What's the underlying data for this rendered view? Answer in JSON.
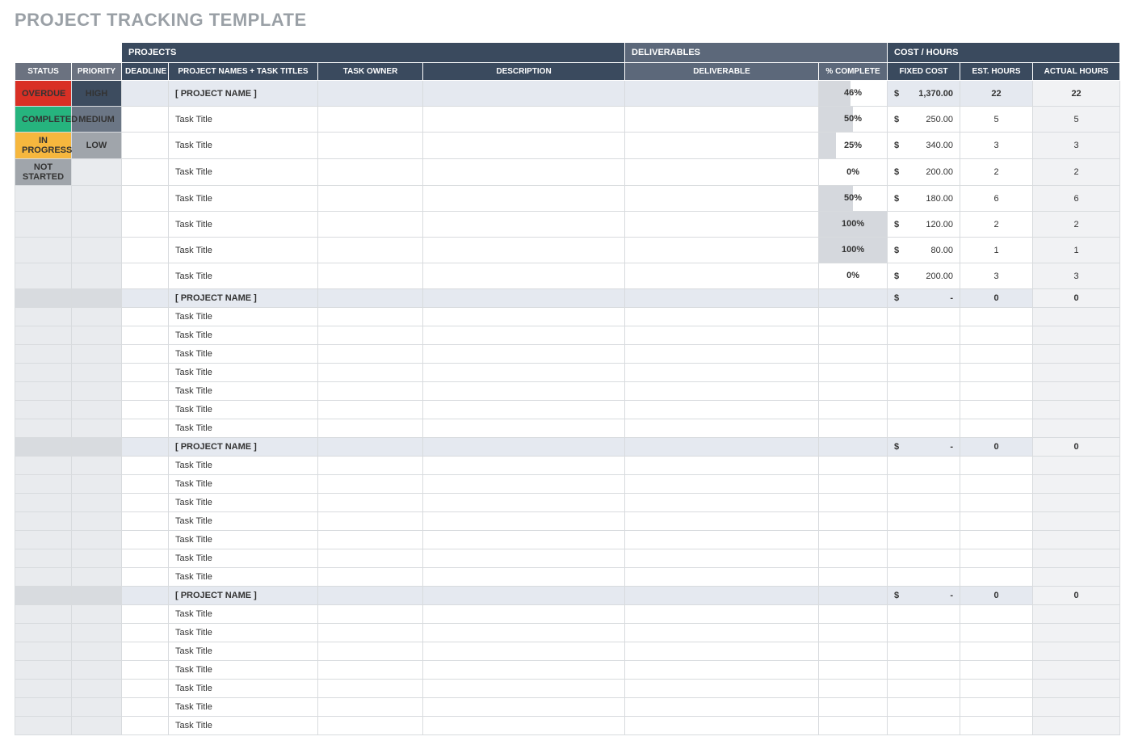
{
  "title": "PROJECT TRACKING TEMPLATE",
  "group_headers": {
    "projects": "PROJECTS",
    "deliverables": "DELIVERABLES",
    "cost_hours": "COST / HOURS"
  },
  "columns": {
    "status": "STATUS",
    "priority": "PRIORITY",
    "deadline": "DEADLINE",
    "name": "PROJECT NAMES + TASK TITLES",
    "owner": "TASK OWNER",
    "desc": "DESCRIPTION",
    "deliverable": "DELIVERABLE",
    "pct": "% COMPLETE",
    "cost": "FIXED COST",
    "est": "EST. HOURS",
    "act": "ACTUAL HOURS"
  },
  "status_badges": [
    {
      "label": "OVERDUE",
      "bg": "#d93025"
    },
    {
      "label": "COMPLETED",
      "bg": "#26b47e"
    },
    {
      "label": "IN PROGRESS",
      "bg": "#f6b73e"
    },
    {
      "label": "NOT STARTED",
      "bg": "#a0a5ab"
    }
  ],
  "priority_badges": [
    {
      "label": "HIGH",
      "bg": "#3d4c5f"
    },
    {
      "label": "MEDIUM",
      "bg": "#6b7685"
    },
    {
      "label": "LOW",
      "bg": "#a0a5ab"
    }
  ],
  "currency_symbol": "$",
  "projects": [
    {
      "name": "[ PROJECT NAME ]",
      "pct": 46,
      "cost": "1,370.00",
      "est": "22",
      "act": "22",
      "tasks": [
        {
          "name": "Task Title",
          "pct": 50,
          "cost": "250.00",
          "est": "5",
          "act": "5"
        },
        {
          "name": "Task Title",
          "pct": 25,
          "cost": "340.00",
          "est": "3",
          "act": "3"
        },
        {
          "name": "Task Title",
          "pct": 0,
          "cost": "200.00",
          "est": "2",
          "act": "2"
        },
        {
          "name": "Task Title",
          "pct": 50,
          "cost": "180.00",
          "est": "6",
          "act": "6"
        },
        {
          "name": "Task Title",
          "pct": 100,
          "cost": "120.00",
          "est": "2",
          "act": "2"
        },
        {
          "name": "Task Title",
          "pct": 100,
          "cost": "80.00",
          "est": "1",
          "act": "1"
        },
        {
          "name": "Task Title",
          "pct": 0,
          "cost": "200.00",
          "est": "3",
          "act": "3"
        }
      ]
    },
    {
      "name": "[ PROJECT NAME ]",
      "pct": null,
      "cost": "-",
      "est": "0",
      "act": "0",
      "tasks": [
        {
          "name": "Task Title"
        },
        {
          "name": "Task Title"
        },
        {
          "name": "Task Title"
        },
        {
          "name": "Task Title"
        },
        {
          "name": "Task Title"
        },
        {
          "name": "Task Title"
        },
        {
          "name": "Task Title"
        }
      ]
    },
    {
      "name": "[ PROJECT NAME ]",
      "pct": null,
      "cost": "-",
      "est": "0",
      "act": "0",
      "tasks": [
        {
          "name": "Task Title"
        },
        {
          "name": "Task Title"
        },
        {
          "name": "Task Title"
        },
        {
          "name": "Task Title"
        },
        {
          "name": "Task Title"
        },
        {
          "name": "Task Title"
        },
        {
          "name": "Task Title"
        }
      ]
    },
    {
      "name": "[ PROJECT NAME ]",
      "pct": null,
      "cost": "-",
      "est": "0",
      "act": "0",
      "tasks": [
        {
          "name": "Task Title"
        },
        {
          "name": "Task Title"
        },
        {
          "name": "Task Title"
        },
        {
          "name": "Task Title"
        },
        {
          "name": "Task Title"
        },
        {
          "name": "Task Title"
        },
        {
          "name": "Task Title"
        }
      ]
    }
  ],
  "colors": {
    "header_dark": "#3a4a5e",
    "header_mid": "#5c687a",
    "header_grey": "#6b7280",
    "row_project_bg": "#e5e9f0",
    "row_bg": "#ffffff",
    "row_alt_grey": "#f1f2f4",
    "border": "#d8dbde",
    "pct_bar": "#d5d8dd",
    "title_grey": "#9aa0a6"
  }
}
